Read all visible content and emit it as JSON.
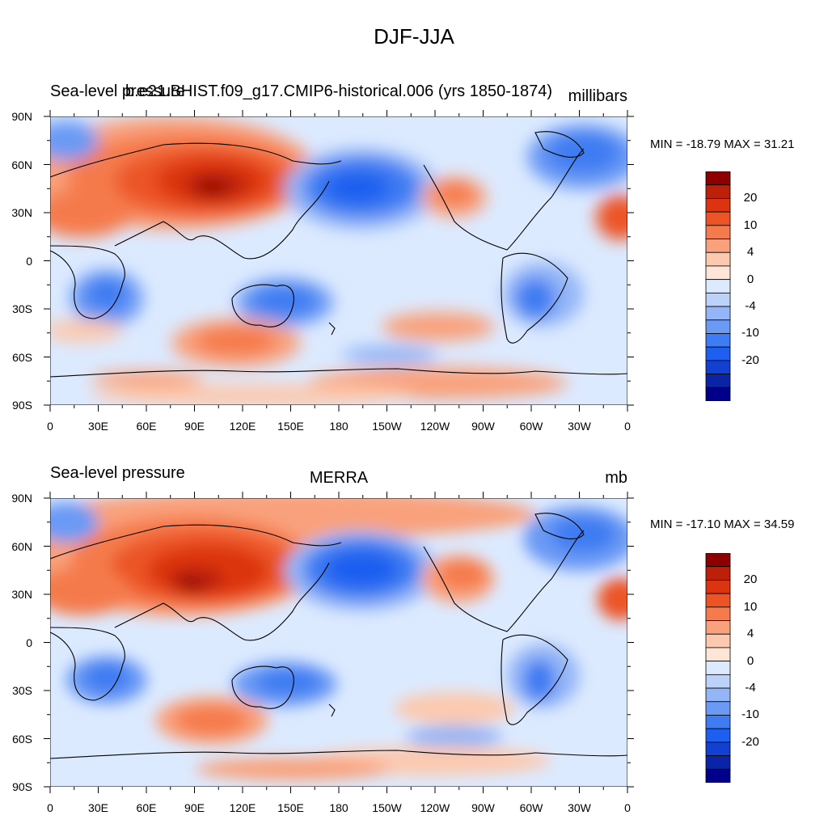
{
  "title": "DJF-JJA",
  "colorbar": {
    "colors": [
      "#ffffff",
      "#00008b",
      "#0a24a8",
      "#1240d0",
      "#1e5ef0",
      "#3d7cf2",
      "#6a9af4",
      "#94b6f6",
      "#bcd2f8",
      "#dceaff",
      "#fde6d8",
      "#fcc9ae",
      "#f9a17c",
      "#f57a4c",
      "#ec5426",
      "#dc3410",
      "#bd2008",
      "#8e0000"
    ],
    "tick_labels": [
      "20",
      "10",
      "4",
      "0",
      "-4",
      "-10",
      "-20"
    ]
  },
  "lat_labels": [
    "90N",
    "60N",
    "30N",
    "0",
    "30S",
    "60S",
    "90S"
  ],
  "lon_labels": [
    "0",
    "30E",
    "60E",
    "90E",
    "120E",
    "150E",
    "180",
    "150W",
    "120W",
    "90W",
    "60W",
    "30W",
    "0"
  ],
  "panels": [
    {
      "left_title": "Sea-level pressure",
      "center_title": "b.e21.BHIST.f09_g17.CMIP6-historical.006 (yrs 1850-1874)",
      "units": "millibars",
      "minmax": "MIN = -18.79 MAX =  31.21"
    },
    {
      "left_title": "Sea-level pressure",
      "center_title": "MERRA",
      "units": "mb",
      "minmax": "MIN = -17.10 MAX =  34.59"
    }
  ]
}
